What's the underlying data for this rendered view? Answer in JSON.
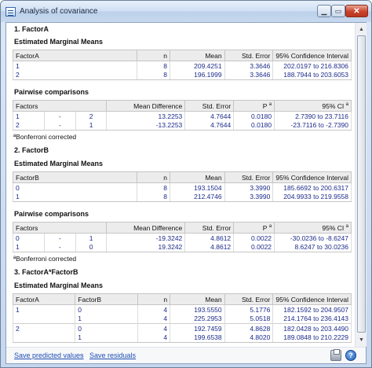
{
  "window": {
    "title": "Analysis of covariance"
  },
  "factorA": {
    "heading": "1. FactorA",
    "emm_title": "Estimated Marginal Means",
    "emm_headers": [
      "FactorA",
      "n",
      "Mean",
      "Std. Error",
      "95% Confidence Interval"
    ],
    "emm_rows": [
      [
        "1",
        "8",
        "209.4251",
        "3.3646",
        "202.0197 to 216.8306"
      ],
      [
        "2",
        "8",
        "196.1999",
        "3.3646",
        "188.7944 to 203.6053"
      ]
    ],
    "pw_title": "Pairwise comparisons",
    "pw_headers": [
      "Factors",
      "Mean Difference",
      "Std. Error",
      "P",
      "95% CI"
    ],
    "pw_rows": [
      [
        "1",
        "-",
        "2",
        "13.2253",
        "4.7644",
        "0.0180",
        "2.7390 to 23.7116"
      ],
      [
        "2",
        "-",
        "1",
        "-13.2253",
        "4.7644",
        "0.0180",
        "-23.7116 to -2.7390"
      ]
    ],
    "footnote": "ªBonferroni corrected"
  },
  "factorB": {
    "heading": "2. FactorB",
    "emm_title": "Estimated Marginal Means",
    "emm_headers": [
      "FactorB",
      "n",
      "Mean",
      "Std. Error",
      "95% Confidence Interval"
    ],
    "emm_rows": [
      [
        "0",
        "8",
        "193.1504",
        "3.3990",
        "185.6692 to 200.6317"
      ],
      [
        "1",
        "8",
        "212.4746",
        "3.3990",
        "204.9933 to 219.9558"
      ]
    ],
    "pw_title": "Pairwise comparisons",
    "pw_headers": [
      "Factors",
      "Mean Difference",
      "Std. Error",
      "P",
      "95% CI"
    ],
    "pw_rows": [
      [
        "0",
        "-",
        "1",
        "-19.3242",
        "4.8612",
        "0.0022",
        "-30.0236 to -8.6247"
      ],
      [
        "1",
        "-",
        "0",
        "19.3242",
        "4.8612",
        "0.0022",
        "8.6247 to 30.0236"
      ]
    ],
    "footnote": "ªBonferroni corrected"
  },
  "interaction": {
    "heading": "3. FactorA*FactorB",
    "emm_title": "Estimated Marginal Means",
    "emm_headers": [
      "FactorA",
      "FactorB",
      "n",
      "Mean",
      "Std. Error",
      "95% Confidence Interval"
    ],
    "emm_rows": [
      [
        "1",
        "0",
        "4",
        "193.5550",
        "5.1776",
        "182.1592 to 204.9507"
      ],
      [
        "",
        "1",
        "4",
        "225.2953",
        "5.0518",
        "214.1764 to 236.4143"
      ],
      [
        "2",
        "0",
        "4",
        "192.7459",
        "4.8628",
        "182.0428 to 203.4490"
      ],
      [
        "",
        "1",
        "4",
        "199.6538",
        "4.8020",
        "189.0848 to 210.2229"
      ]
    ]
  },
  "sup_a": "a",
  "footer": {
    "save_predicted": "Save predicted values",
    "separator": "-",
    "save_residuals": "Save residuals"
  },
  "icons": {
    "print": "print-icon",
    "help": "help-icon",
    "app": "table-icon"
  }
}
